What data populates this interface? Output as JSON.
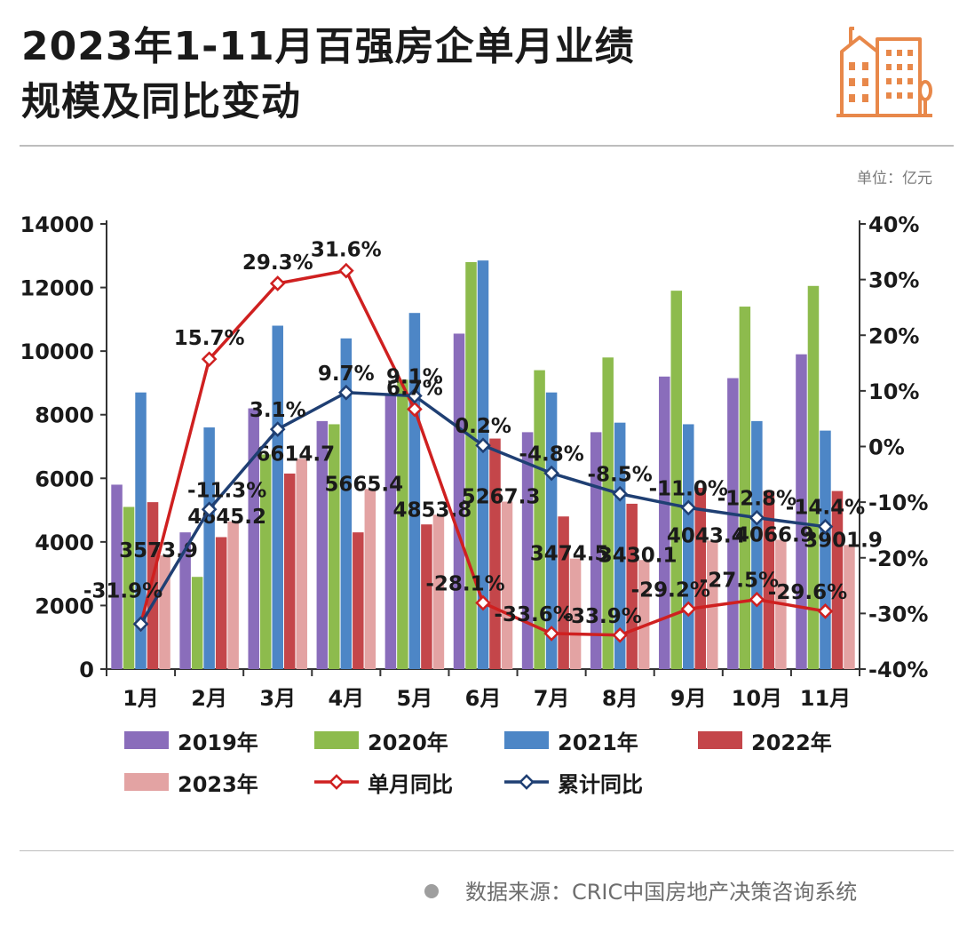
{
  "title": {
    "line1": "2023年1-11月百强房企单月业绩",
    "line2": "规模及同比变动"
  },
  "unit": "单位：亿元",
  "source": "数据来源：CRIC中国房地产决策咨询系统",
  "icons": [
    "building-logo-icon",
    "bullet-dot-icon"
  ],
  "colors": {
    "y2019": "#8a6dbb",
    "y2020": "#8dbb4d",
    "y2021": "#4d86c6",
    "y2022": "#c4464a",
    "y2023": "#e3a3a3",
    "monthly_yoy": "#cf2020",
    "cumulative_yoy": "#1f3f73",
    "logo": "#e8884a"
  },
  "legend": [
    "2019年",
    "2020年",
    "2021年",
    "2022年",
    "2023年",
    "单月同比",
    "累计同比"
  ],
  "chart_data": {
    "type": "bar",
    "categories": [
      "1月",
      "2月",
      "3月",
      "4月",
      "5月",
      "6月",
      "7月",
      "8月",
      "9月",
      "10月",
      "11月"
    ],
    "series": [
      {
        "name": "2019年",
        "type": "bar",
        "axis": "left",
        "values": [
          5800,
          4300,
          8200,
          7800,
          8600,
          10550,
          7450,
          7450,
          9200,
          9150,
          9900
        ]
      },
      {
        "name": "2020年",
        "type": "bar",
        "axis": "left",
        "values": [
          5100,
          2900,
          6750,
          7700,
          9100,
          12800,
          9400,
          9800,
          11900,
          11400,
          12050
        ]
      },
      {
        "name": "2021年",
        "type": "bar",
        "axis": "left",
        "values": [
          8700,
          7600,
          10800,
          10400,
          11200,
          12850,
          8700,
          7750,
          7700,
          7800,
          7500
        ]
      },
      {
        "name": "2022年",
        "type": "bar",
        "axis": "left",
        "values": [
          5250,
          4150,
          6150,
          4300,
          4550,
          7250,
          4800,
          5200,
          5700,
          5600,
          5600
        ]
      },
      {
        "name": "2023年",
        "type": "bar",
        "axis": "left",
        "values": [
          3573.9,
          4645.2,
          6614.7,
          5665.4,
          4853.8,
          5267.3,
          3474.5,
          3430.1,
          4043.4,
          4066.9,
          3901.9
        ]
      },
      {
        "name": "单月同比",
        "type": "line",
        "axis": "right",
        "values": [
          -31.9,
          15.7,
          29.3,
          31.6,
          6.7,
          -28.1,
          -33.6,
          -33.9,
          -29.2,
          -27.5,
          -29.6
        ]
      },
      {
        "name": "累计同比",
        "type": "line",
        "axis": "right",
        "values": [
          -31.9,
          -11.3,
          3.1,
          9.7,
          9.1,
          0.2,
          -4.8,
          -8.5,
          -11.0,
          -12.8,
          -14.4
        ]
      }
    ],
    "bar_labels": [
      "3573.9",
      "4645.2",
      "6614.7",
      "5665.4",
      "4853.8",
      "5267.3",
      "3474.5",
      "3430.1",
      "4043.4",
      "4066.9",
      "3901.9"
    ],
    "monthly_labels": [
      "-31.9%",
      "15.7%",
      "29.3%",
      "31.6%",
      "6.7%",
      "-28.1%",
      "-33.6%",
      "-33.9%",
      "-29.2%",
      "-27.5%",
      "-29.6%"
    ],
    "cumulative_labels": [
      "",
      "-11.3%",
      "3.1%",
      "9.7%",
      "9.1%",
      "0.2%",
      "-4.8%",
      "-8.5%",
      "-11.0%",
      "-12.8%",
      "-14.4%"
    ],
    "ylim": [
      0,
      14000
    ],
    "yticks": [
      "0",
      "2000",
      "4000",
      "6000",
      "8000",
      "10000",
      "12000",
      "14000"
    ],
    "y2lim": [
      -40,
      40
    ],
    "y2ticks": [
      "-40%",
      "-30%",
      "-20%",
      "-10%",
      "0%",
      "10%",
      "20%",
      "30%",
      "40%"
    ],
    "grid": false,
    "legend_position": "bottom"
  }
}
